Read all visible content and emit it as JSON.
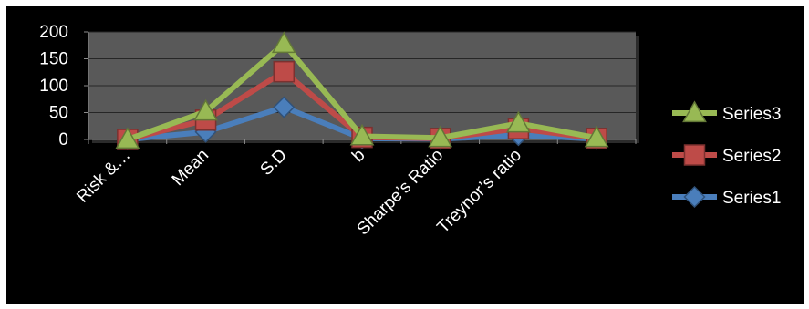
{
  "chart_data": {
    "type": "line",
    "title": "",
    "xlabel": "",
    "ylabel": "",
    "categories": [
      "Risk &…",
      "Mean",
      "S.D",
      "b",
      "Sharpe’s Ratio",
      "Treynor’s ratio",
      ""
    ],
    "ylim": [
      0,
      200
    ],
    "yticks": [
      0,
      50,
      100,
      150,
      200
    ],
    "grid": true,
    "legend": "right",
    "background": "#000000",
    "plot_background": "#595959",
    "series": [
      {
        "name": "Series1",
        "color": "#4a7ebb",
        "marker": "diamond",
        "values": [
          0,
          14,
          60,
          2,
          1,
          8,
          1
        ]
      },
      {
        "name": "Series2",
        "color": "#be4b48",
        "marker": "square",
        "values": [
          0,
          36,
          126,
          4,
          2,
          20,
          2
        ]
      },
      {
        "name": "Series3",
        "color": "#98b954",
        "marker": "triangle",
        "values": [
          0,
          52,
          178,
          6,
          3,
          30,
          3
        ]
      }
    ],
    "legend_order": [
      "Series3",
      "Series2",
      "Series1"
    ]
  }
}
